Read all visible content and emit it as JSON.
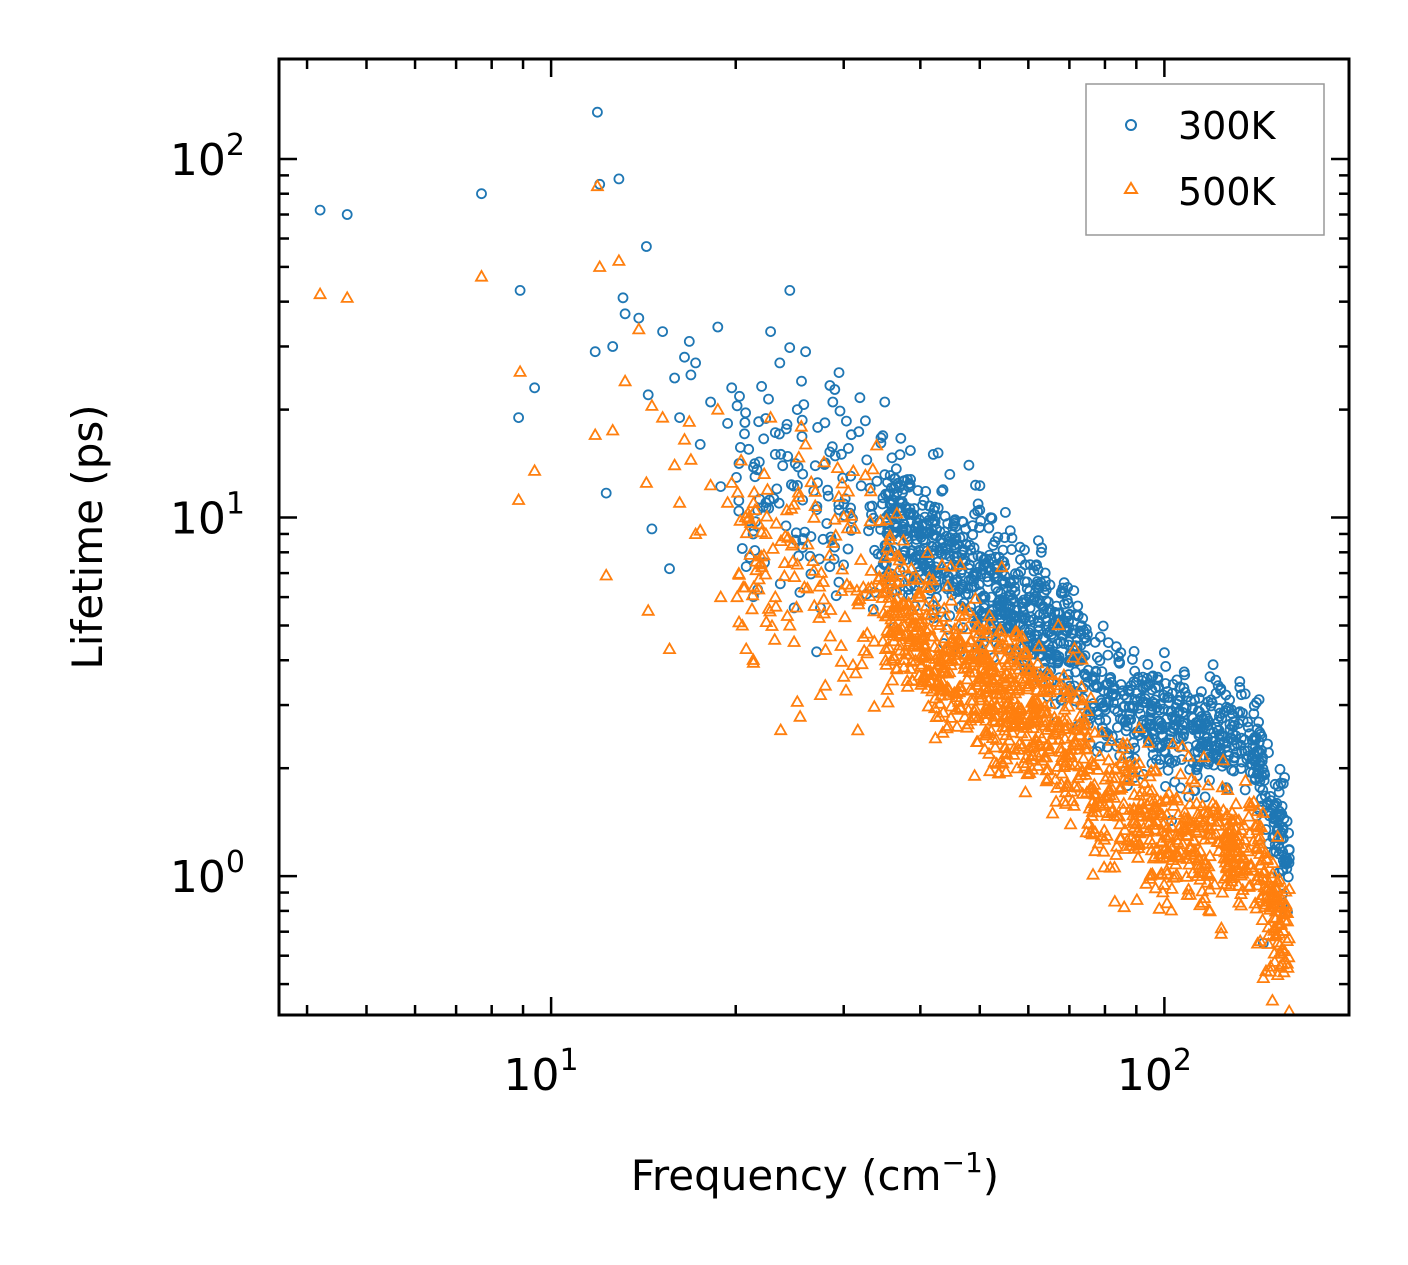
{
  "chart_data": {
    "type": "scatter",
    "title": "",
    "xlabel": "Frequency (cm",
    "xlabel_sup": "−1",
    "xlabel_end": ")",
    "ylabel": "Lifetime (ps)",
    "xscale": "log",
    "yscale": "log",
    "xlim": [
      3.6,
      200
    ],
    "ylim": [
      0.41,
      190
    ],
    "x_ticks": [
      {
        "value": 10,
        "base": "10",
        "exp": "1"
      },
      {
        "value": 100,
        "base": "10",
        "exp": "2"
      }
    ],
    "y_ticks": [
      {
        "value": 1,
        "base": "10",
        "exp": "0"
      },
      {
        "value": 10,
        "base": "10",
        "exp": "1"
      },
      {
        "value": 100,
        "base": "10",
        "exp": "2"
      }
    ],
    "legend_position": "top-right",
    "series": [
      {
        "name": "300K",
        "marker": "circle",
        "color": "#1f77b4",
        "anchors": [
          [
            4.2,
            72
          ],
          [
            4.65,
            70
          ],
          [
            7.7,
            80
          ],
          [
            8.9,
            43
          ],
          [
            8.85,
            19
          ],
          [
            9.4,
            23
          ],
          [
            11.9,
            135
          ],
          [
            12.0,
            85
          ],
          [
            11.8,
            29
          ],
          [
            12.3,
            11.7
          ],
          [
            12.6,
            30
          ],
          [
            12.9,
            88
          ],
          [
            13.1,
            41
          ],
          [
            13.2,
            37
          ],
          [
            13.9,
            36
          ],
          [
            14.3,
            57
          ],
          [
            14.4,
            22
          ],
          [
            14.6,
            9.3
          ],
          [
            15.2,
            33
          ],
          [
            15.6,
            7.2
          ],
          [
            15.9,
            24.5
          ],
          [
            16.2,
            19
          ],
          [
            16.5,
            28
          ],
          [
            16.8,
            31
          ],
          [
            16.9,
            25
          ],
          [
            17.2,
            27
          ],
          [
            17.5,
            16
          ],
          [
            18.2,
            21
          ],
          [
            18.7,
            34
          ],
          [
            18.9,
            12.2
          ],
          [
            19.4,
            18.3
          ],
          [
            19.7,
            23
          ],
          [
            20.1,
            20.5
          ],
          [
            20.5,
            8.2
          ],
          [
            20.8,
            7.3
          ],
          [
            21.0,
            15.5
          ],
          [
            21.5,
            13
          ],
          [
            21.8,
            18.5
          ],
          [
            22.4,
            11
          ],
          [
            22.8,
            33
          ],
          [
            23.2,
            15
          ],
          [
            23.6,
            27
          ],
          [
            24.5,
            43
          ],
          [
            24.9,
            5.6
          ],
          [
            25.2,
            20
          ],
          [
            25.6,
            24
          ],
          [
            26.0,
            29
          ],
          [
            27.5,
            5.6
          ],
          [
            28.0,
            14.2
          ],
          [
            28.8,
            21
          ],
          [
            35.0,
            21
          ]
        ],
        "clusters": [
          {
            "x": [
              20,
              35
            ],
            "y0": 13,
            "y1": 10,
            "spread": 0.45,
            "n": 140
          },
          {
            "x": [
              35,
              75
            ],
            "y0": 10,
            "y1": 4.2,
            "spread": 0.28,
            "n": 700
          },
          {
            "x": [
              75,
              95
            ],
            "y0": 3.3,
            "y1": 2.9,
            "spread": 0.22,
            "n": 150
          },
          {
            "x": [
              95,
              140
            ],
            "y0": 2.6,
            "y1": 2.4,
            "spread": 0.2,
            "n": 280
          },
          {
            "x": [
              140,
              160
            ],
            "y0": 2.3,
            "y1": 1.1,
            "spread": 0.22,
            "n": 120
          }
        ],
        "extra": [
          [
            63,
            8.0
          ],
          [
            100,
            4.2
          ],
          [
            112,
            3.1
          ],
          [
            126,
            3.2
          ],
          [
            145,
            0.65
          ],
          [
            62,
            6.4
          ],
          [
            48,
            14
          ],
          [
            50,
            10.5
          ],
          [
            42,
            15
          ]
        ]
      },
      {
        "name": "500K",
        "marker": "triangle",
        "color": "#ff7f0e",
        "anchors": [
          [
            4.2,
            42
          ],
          [
            4.65,
            41
          ],
          [
            7.7,
            47
          ],
          [
            8.9,
            25.5
          ],
          [
            8.85,
            11.2
          ],
          [
            9.4,
            13.5
          ],
          [
            11.9,
            84
          ],
          [
            11.8,
            17
          ],
          [
            12.0,
            50
          ],
          [
            12.3,
            6.9
          ],
          [
            12.6,
            17.5
          ],
          [
            12.9,
            52
          ],
          [
            13.2,
            24
          ],
          [
            13.9,
            33.5
          ],
          [
            14.3,
            12.5
          ],
          [
            14.4,
            5.5
          ],
          [
            14.6,
            20.5
          ],
          [
            15.2,
            19
          ],
          [
            15.6,
            4.3
          ],
          [
            15.9,
            14
          ],
          [
            16.2,
            11
          ],
          [
            16.5,
            16.5
          ],
          [
            16.8,
            18.5
          ],
          [
            16.9,
            14.5
          ],
          [
            17.2,
            9
          ],
          [
            17.5,
            9.2
          ],
          [
            18.2,
            12.3
          ],
          [
            18.7,
            20
          ],
          [
            18.9,
            6
          ],
          [
            19.4,
            11
          ],
          [
            19.7,
            12.5
          ],
          [
            20.1,
            6
          ],
          [
            20.5,
            5
          ],
          [
            20.8,
            4.3
          ],
          [
            21.0,
            10
          ],
          [
            21.5,
            10.5
          ],
          [
            22.4,
            9
          ],
          [
            22.8,
            19
          ],
          [
            23.2,
            6
          ],
          [
            24.5,
            5
          ],
          [
            24.9,
            4.5
          ],
          [
            25.2,
            7.4
          ],
          [
            26.0,
            16
          ],
          [
            27.5,
            3.2
          ],
          [
            28.0,
            3.4
          ],
          [
            28.8,
            8.5
          ],
          [
            30.0,
            3.6
          ]
        ],
        "clusters": [
          {
            "x": [
              20,
              35
            ],
            "y0": 8,
            "y1": 6,
            "spread": 0.45,
            "n": 140
          },
          {
            "x": [
              35,
              75
            ],
            "y0": 5.5,
            "y1": 2.2,
            "spread": 0.3,
            "n": 700
          },
          {
            "x": [
              75,
              95
            ],
            "y0": 1.7,
            "y1": 1.5,
            "spread": 0.28,
            "n": 150
          },
          {
            "x": [
              95,
              140
            ],
            "y0": 1.3,
            "y1": 1.2,
            "spread": 0.25,
            "n": 280
          },
          {
            "x": [
              140,
              160
            ],
            "y0": 1.2,
            "y1": 0.62,
            "spread": 0.25,
            "n": 120
          }
        ],
        "extra": [
          [
            150,
            0.45
          ],
          [
            153,
            0.53
          ],
          [
            145,
            0.52
          ],
          [
            149,
            0.56
          ],
          [
            107,
            2.3
          ],
          [
            83,
            0.85
          ],
          [
            86,
            0.82
          ]
        ]
      }
    ]
  }
}
